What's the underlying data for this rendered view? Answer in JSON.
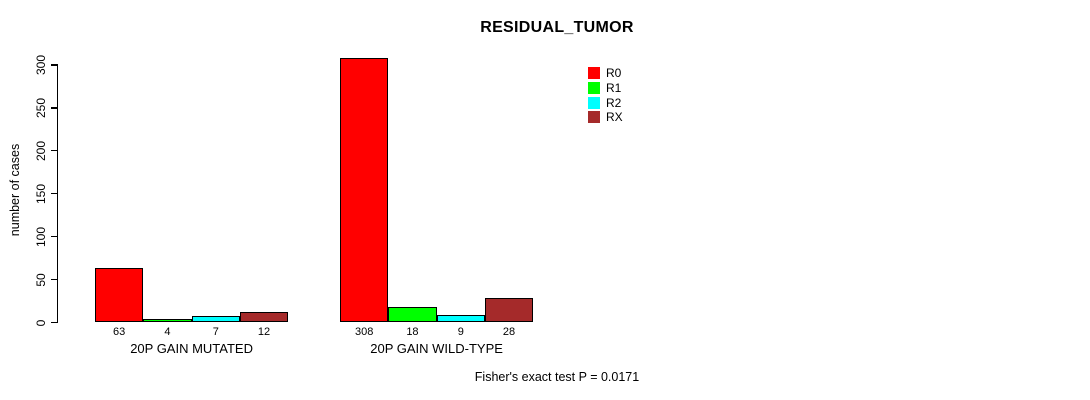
{
  "title": "RESIDUAL_TUMOR",
  "legend": {
    "items": [
      {
        "label": "R0",
        "color": "#FF0000"
      },
      {
        "label": "R1",
        "color": "#00FF00"
      },
      {
        "label": "R2",
        "color": "#00FFFF"
      },
      {
        "label": "RX",
        "color": "#A52A2A"
      }
    ]
  },
  "chart_data": {
    "type": "bar",
    "title": "RESIDUAL_TUMOR",
    "ylabel": "number of cases",
    "xlabel": "",
    "categories": [
      "20P GAIN MUTATED",
      "20P GAIN WILD-TYPE"
    ],
    "series": [
      {
        "name": "R0",
        "color": "#FF0000",
        "values": [
          63,
          308
        ]
      },
      {
        "name": "R1",
        "color": "#00FF00",
        "values": [
          4,
          18
        ]
      },
      {
        "name": "R2",
        "color": "#00FFFF",
        "values": [
          7,
          9
        ]
      },
      {
        "name": "RX",
        "color": "#A52A2A",
        "values": [
          12,
          28
        ]
      }
    ],
    "bar_value_labels": [
      [
        63,
        4,
        7,
        12
      ],
      [
        308,
        18,
        9,
        28
      ]
    ],
    "yticks": [
      0,
      50,
      100,
      150,
      200,
      250,
      300
    ],
    "ylim": [
      0,
      300
    ],
    "grid": false,
    "legend_position": "top-right",
    "bar_border_color": "#000000",
    "annotation": "Fisher's exact test P = 0.0171"
  }
}
